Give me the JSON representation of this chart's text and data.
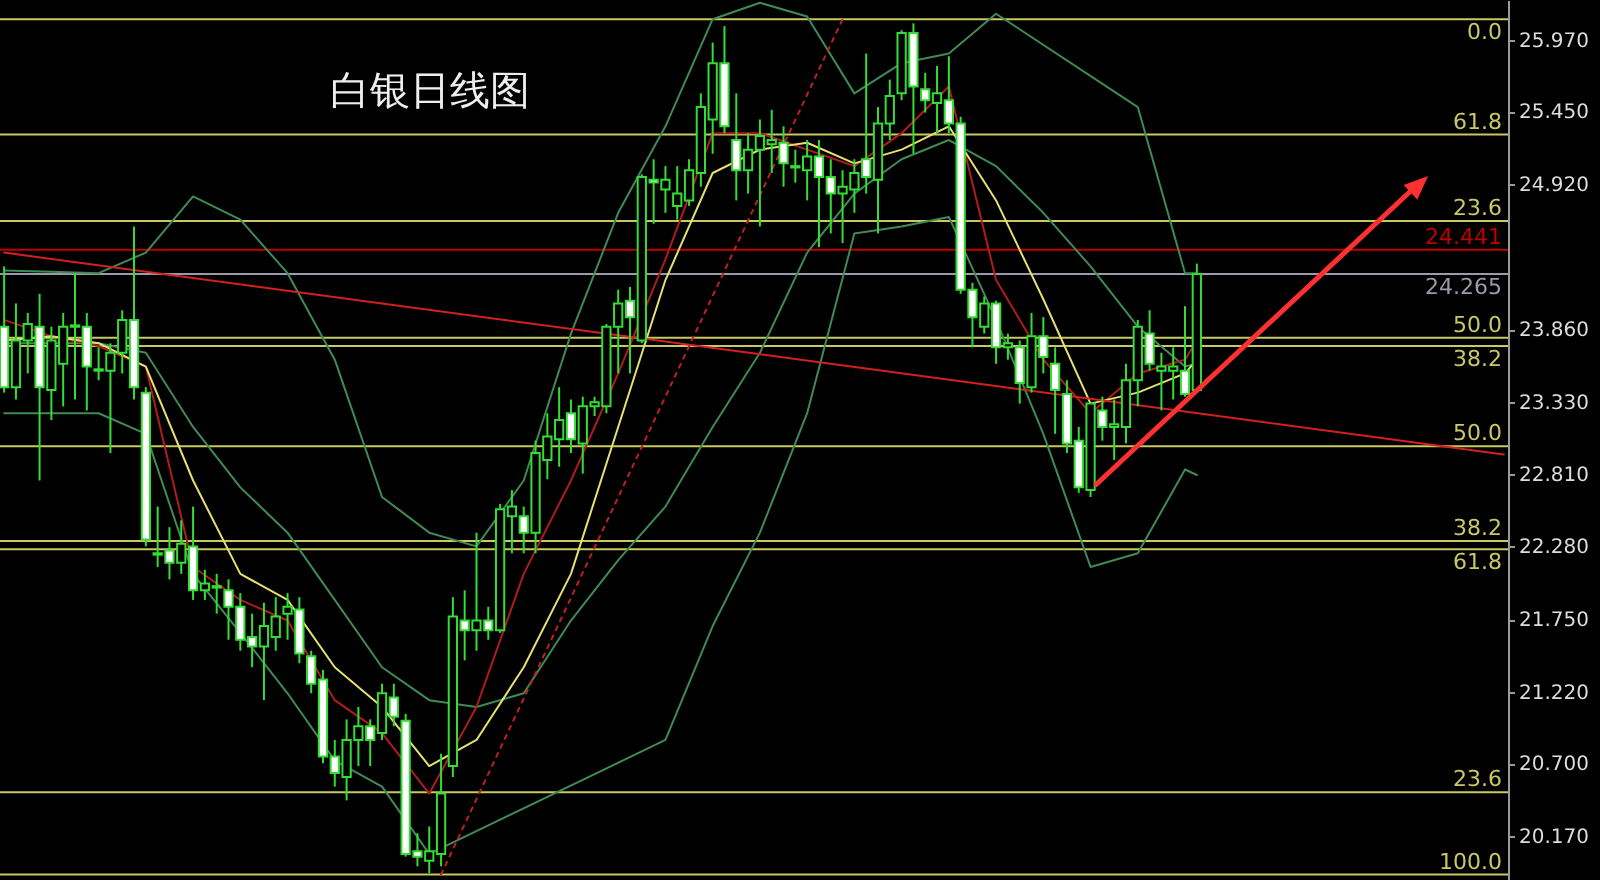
{
  "chart_data": {
    "type": "candlestick",
    "title": "白银日线图",
    "categories": [
      null,
      null,
      null,
      null,
      null,
      null,
      null,
      null,
      null,
      null,
      null,
      null,
      null,
      null,
      null,
      null,
      null,
      null,
      null,
      null,
      null,
      null,
      null,
      null,
      null,
      null,
      null,
      null,
      null,
      null,
      null,
      null,
      null,
      null,
      null,
      null,
      null,
      null,
      null,
      null,
      null,
      null,
      null,
      null,
      null,
      null,
      null,
      null,
      null,
      null,
      null,
      null,
      null,
      null,
      null,
      null,
      null,
      null,
      null,
      null,
      null,
      null,
      null,
      null,
      null,
      null,
      null,
      null,
      null,
      null,
      null,
      null,
      null,
      null,
      null,
      null,
      null,
      null,
      null,
      null,
      null,
      null,
      null,
      null,
      null,
      null,
      null,
      null,
      null,
      null,
      null,
      null,
      null,
      null,
      null,
      null,
      null,
      null,
      null,
      null,
      null,
      null,
      null,
      null,
      null,
      null,
      null,
      null,
      null,
      null,
      null,
      null,
      null,
      null,
      null,
      null,
      null,
      null,
      null,
      null,
      null,
      null,
      null,
      null,
      null,
      null,
      null,
      null
    ],
    "color": "#33dd33",
    "ohlc": [
      [
        23.88,
        24.32,
        23.4,
        23.44
      ],
      [
        23.44,
        24.05,
        23.35,
        23.78
      ],
      [
        23.78,
        23.98,
        23.54,
        23.9
      ],
      [
        23.88,
        24.12,
        22.76,
        23.44
      ],
      [
        23.42,
        23.88,
        23.2,
        23.78
      ],
      [
        23.61,
        23.98,
        23.3,
        23.88
      ],
      [
        23.88,
        24.27,
        23.35,
        23.89
      ],
      [
        23.88,
        23.98,
        23.27,
        23.59
      ],
      [
        23.56,
        23.73,
        23.49,
        23.57
      ],
      [
        23.56,
        23.76,
        22.96,
        23.69
      ],
      [
        23.69,
        24.0,
        23.54,
        23.93
      ],
      [
        23.93,
        24.61,
        23.35,
        23.44
      ],
      [
        23.4,
        23.44,
        22.28,
        22.33
      ],
      [
        22.22,
        22.57,
        22.13,
        22.23
      ],
      [
        22.25,
        22.42,
        22.04,
        22.16
      ],
      [
        22.16,
        22.47,
        22.08,
        22.3
      ],
      [
        22.28,
        22.57,
        21.89,
        21.96
      ],
      [
        21.96,
        22.11,
        21.89,
        22.01
      ],
      [
        21.98,
        22.08,
        21.79,
        21.99
      ],
      [
        21.96,
        22.04,
        21.6,
        21.84
      ],
      [
        21.84,
        21.94,
        21.52,
        21.6
      ],
      [
        21.62,
        21.79,
        21.4,
        21.55
      ],
      [
        21.55,
        21.87,
        21.16,
        21.7
      ],
      [
        21.62,
        21.91,
        21.52,
        21.77
      ],
      [
        21.79,
        21.94,
        21.6,
        21.84
      ],
      [
        21.82,
        21.91,
        21.43,
        21.5
      ],
      [
        21.48,
        21.52,
        21.21,
        21.28
      ],
      [
        21.31,
        21.38,
        20.7,
        20.75
      ],
      [
        20.75,
        20.87,
        20.53,
        20.63
      ],
      [
        20.6,
        21.02,
        20.43,
        20.87
      ],
      [
        20.87,
        21.11,
        20.68,
        20.97
      ],
      [
        20.97,
        21.02,
        20.68,
        20.87
      ],
      [
        20.92,
        21.28,
        20.87,
        21.21
      ],
      [
        21.18,
        21.28,
        20.97,
        21.04
      ],
      [
        21.01,
        21.06,
        20.02,
        20.04
      ],
      [
        20.06,
        20.19,
        19.95,
        20.02
      ],
      [
        19.99,
        20.24,
        19.9,
        20.06
      ],
      [
        20.04,
        20.77,
        19.95,
        20.48
      ],
      [
        20.68,
        21.91,
        20.6,
        21.77
      ],
      [
        21.74,
        21.96,
        21.45,
        21.67
      ],
      [
        21.67,
        22.38,
        21.52,
        21.74
      ],
      [
        21.74,
        21.84,
        21.6,
        21.67
      ],
      [
        21.67,
        22.59,
        21.65,
        22.55
      ],
      [
        22.5,
        22.69,
        22.23,
        22.57
      ],
      [
        22.5,
        22.57,
        22.23,
        22.38
      ],
      [
        22.38,
        23.05,
        22.23,
        22.96
      ],
      [
        22.91,
        23.25,
        22.77,
        23.08
      ],
      [
        23.06,
        23.44,
        22.86,
        23.2
      ],
      [
        23.25,
        23.35,
        22.96,
        23.06
      ],
      [
        23.03,
        23.37,
        22.81,
        23.3
      ],
      [
        23.3,
        23.37,
        23.23,
        23.33
      ],
      [
        23.3,
        23.9,
        23.25,
        23.88
      ],
      [
        23.88,
        24.15,
        23.54,
        24.05
      ],
      [
        24.07,
        24.17,
        23.54,
        23.95
      ],
      [
        23.78,
        24.99,
        23.76,
        24.97
      ],
      [
        24.95,
        25.1,
        24.63,
        24.93
      ],
      [
        24.88,
        25.05,
        24.71,
        24.95
      ],
      [
        24.76,
        25.05,
        24.66,
        24.85
      ],
      [
        24.8,
        25.1,
        24.76,
        25.02
      ],
      [
        25.0,
        25.58,
        24.9,
        25.48
      ],
      [
        25.39,
        25.95,
        25.14,
        25.8
      ],
      [
        25.8,
        26.07,
        25.29,
        25.34
      ],
      [
        25.24,
        25.58,
        24.8,
        25.02
      ],
      [
        25.02,
        25.29,
        24.85,
        25.17
      ],
      [
        25.17,
        25.39,
        24.61,
        25.27
      ],
      [
        25.21,
        25.46,
        25.0,
        25.24
      ],
      [
        25.22,
        25.34,
        24.9,
        25.07
      ],
      [
        25.04,
        25.17,
        24.93,
        25.05
      ],
      [
        25.02,
        25.24,
        24.8,
        25.12
      ],
      [
        25.12,
        25.24,
        24.46,
        24.97
      ],
      [
        24.97,
        25.1,
        24.56,
        24.85
      ],
      [
        24.85,
        25.02,
        24.49,
        24.9
      ],
      [
        24.88,
        25.1,
        24.71,
        25.0
      ],
      [
        25.1,
        25.87,
        24.85,
        24.97
      ],
      [
        24.95,
        25.48,
        24.56,
        25.36
      ],
      [
        25.36,
        25.68,
        25.24,
        25.56
      ],
      [
        25.58,
        26.04,
        25.53,
        26.02
      ],
      [
        26.02,
        26.09,
        25.14,
        25.63
      ],
      [
        25.61,
        25.73,
        25.44,
        25.53
      ],
      [
        25.51,
        25.78,
        25.29,
        25.58
      ],
      [
        25.53,
        25.85,
        25.29,
        25.36
      ],
      [
        25.36,
        25.41,
        24.12,
        24.15
      ],
      [
        24.15,
        24.2,
        23.73,
        23.95
      ],
      [
        23.88,
        24.1,
        23.83,
        24.05
      ],
      [
        24.05,
        24.07,
        23.61,
        23.73
      ],
      [
        23.73,
        23.83,
        23.64,
        23.76
      ],
      [
        23.73,
        23.78,
        23.32,
        23.47
      ],
      [
        23.44,
        23.98,
        23.4,
        23.81
      ],
      [
        23.81,
        23.95,
        23.54,
        23.66
      ],
      [
        23.61,
        23.73,
        23.1,
        23.42
      ],
      [
        23.39,
        23.49,
        22.96,
        23.03
      ],
      [
        23.05,
        23.15,
        22.67,
        22.71
      ],
      [
        22.69,
        23.32,
        22.64,
        23.32
      ],
      [
        23.27,
        23.37,
        23.05,
        23.15
      ],
      [
        23.15,
        23.35,
        22.91,
        23.17
      ],
      [
        23.15,
        23.61,
        23.03,
        23.49
      ],
      [
        23.49,
        23.93,
        23.3,
        23.88
      ],
      [
        23.83,
        24.0,
        23.56,
        23.61
      ],
      [
        23.56,
        23.69,
        23.27,
        23.59
      ],
      [
        23.56,
        23.73,
        23.35,
        23.59
      ],
      [
        23.56,
        24.03,
        23.37,
        23.39
      ],
      [
        23.42,
        24.34,
        23.4,
        24.265
      ],
      null,
      null,
      null,
      null,
      null,
      null,
      null,
      null,
      null,
      null,
      null,
      null,
      null,
      null,
      null,
      null,
      null,
      null,
      null,
      null,
      null,
      null,
      null,
      null,
      null,
      null
    ],
    "series": [
      {
        "type": "line",
        "color": "#3f8a55",
        "values": [
          24.29,
          null,
          null,
          null,
          24.28,
          null,
          null,
          null,
          24.27,
          null,
          null,
          null,
          24.42,
          null,
          null,
          null,
          24.83,
          null,
          null,
          null,
          24.66,
          null,
          null,
          null,
          24.27,
          null,
          null,
          null,
          23.64,
          null,
          null,
          null,
          22.64,
          null,
          null,
          null,
          22.38,
          null,
          null,
          null,
          22.28,
          null,
          null,
          null,
          22.76,
          null,
          null,
          null,
          23.83,
          null,
          null,
          null,
          24.71,
          null,
          null,
          null,
          25.34,
          null,
          null,
          null,
          26.12,
          null,
          null,
          null,
          26.24,
          null,
          null,
          null,
          26.14,
          null,
          null,
          null,
          25.58,
          null,
          null,
          null,
          25.8,
          null,
          null,
          null,
          25.87,
          null,
          null,
          null,
          26.16,
          null,
          null,
          null,
          null,
          null,
          null,
          null,
          null,
          null,
          null,
          null,
          25.48,
          null,
          null,
          null,
          24.27,
          24.27,
          null,
          null,
          null,
          null,
          null,
          null,
          null,
          null,
          null,
          null,
          null,
          null,
          null,
          null,
          null,
          null,
          null,
          null,
          null,
          null,
          null,
          null,
          null,
          null,
          null,
          null
        ]
      },
      {
        "type": "line",
        "color": "#3f8a55",
        "values": [
          23.76,
          null,
          null,
          null,
          23.76,
          null,
          null,
          null,
          23.76,
          null,
          null,
          null,
          23.69,
          null,
          null,
          null,
          23.15,
          null,
          null,
          null,
          22.71,
          null,
          null,
          null,
          22.38,
          null,
          null,
          null,
          21.89,
          null,
          null,
          null,
          21.4,
          null,
          null,
          null,
          21.16,
          null,
          null,
          null,
          21.11,
          null,
          null,
          null,
          21.21,
          null,
          null,
          null,
          21.74,
          null,
          null,
          null,
          22.18,
          null,
          null,
          null,
          22.57,
          null,
          null,
          null,
          23.15,
          null,
          null,
          null,
          23.69,
          null,
          null,
          null,
          24.42,
          null,
          null,
          null,
          24.85,
          null,
          null,
          null,
          25.1,
          null,
          null,
          null,
          25.24,
          null,
          null,
          null,
          25.05,
          null,
          null,
          null,
          24.71,
          null,
          null,
          null,
          24.32,
          null,
          null,
          null,
          23.88,
          null,
          null,
          null,
          23.59,
          23.61,
          null,
          null,
          null,
          null,
          null,
          null,
          null,
          null,
          null,
          null,
          null,
          null,
          null,
          null,
          null,
          null,
          null,
          null,
          null,
          null,
          null,
          null,
          null,
          null,
          null,
          null
        ]
      },
      {
        "type": "line",
        "color": "#3f8a55",
        "values": [
          23.25,
          null,
          null,
          null,
          23.25,
          null,
          null,
          null,
          23.25,
          null,
          null,
          null,
          23.1,
          null,
          null,
          null,
          22.08,
          null,
          null,
          null,
          21.65,
          null,
          null,
          null,
          21.21,
          null,
          null,
          null,
          20.72,
          null,
          null,
          null,
          20.53,
          null,
          null,
          null,
          20.04,
          null,
          null,
          null,
          null,
          null,
          null,
          null,
          null,
          null,
          null,
          null,
          null,
          null,
          null,
          null,
          null,
          null,
          null,
          null,
          20.87,
          null,
          null,
          null,
          21.7,
          null,
          null,
          null,
          22.38,
          null,
          null,
          null,
          23.25,
          null,
          null,
          null,
          24.56,
          null,
          null,
          null,
          24.61,
          null,
          null,
          null,
          24.68,
          null,
          null,
          null,
          23.93,
          null,
          null,
          null,
          23.1,
          null,
          null,
          null,
          22.13,
          null,
          null,
          null,
          22.23,
          null,
          null,
          null,
          22.84,
          22.8,
          null,
          null,
          null,
          null,
          null,
          null,
          null,
          null,
          null,
          null,
          null,
          null,
          null,
          null,
          null,
          null,
          null,
          null,
          null,
          null,
          null,
          null,
          null,
          null,
          null,
          null
        ]
      },
      {
        "type": "line",
        "color": "#b01c1c",
        "values": [
          23.93,
          null,
          null,
          null,
          23.81,
          null,
          null,
          null,
          23.74,
          null,
          null,
          null,
          23.59,
          null,
          null,
          null,
          22.13,
          null,
          null,
          null,
          21.89,
          null,
          null,
          null,
          21.74,
          null,
          null,
          null,
          21.16,
          null,
          null,
          null,
          20.92,
          null,
          null,
          null,
          20.48,
          null,
          null,
          null,
          21.11,
          null,
          null,
          null,
          22.08,
          null,
          null,
          null,
          22.76,
          null,
          null,
          null,
          23.54,
          null,
          null,
          null,
          24.37,
          null,
          null,
          null,
          25.29,
          null,
          null,
          null,
          25.29,
          null,
          null,
          null,
          25.17,
          null,
          null,
          null,
          25.05,
          null,
          null,
          null,
          25.29,
          null,
          null,
          null,
          25.63,
          null,
          null,
          null,
          24.22,
          null,
          null,
          null,
          23.64,
          null,
          null,
          null,
          23.25,
          null,
          null,
          null,
          23.54,
          null,
          null,
          null,
          23.64,
          23.78,
          null,
          null,
          null,
          null,
          null,
          null,
          null,
          null,
          null,
          null,
          null,
          null,
          null,
          null,
          null,
          null,
          null,
          null,
          null,
          null,
          null,
          null,
          null,
          null,
          null,
          null
        ]
      },
      {
        "type": "line",
        "color": "#e6e070",
        "values": [
          23.78,
          null,
          null,
          null,
          23.81,
          null,
          null,
          null,
          23.76,
          null,
          null,
          null,
          23.59,
          null,
          null,
          null,
          22.76,
          null,
          null,
          null,
          22.08,
          null,
          null,
          null,
          21.89,
          null,
          null,
          null,
          21.4,
          null,
          null,
          null,
          21.11,
          null,
          null,
          null,
          20.68,
          null,
          null,
          null,
          20.87,
          null,
          null,
          null,
          21.4,
          null,
          null,
          null,
          22.08,
          null,
          null,
          null,
          23.15,
          null,
          null,
          null,
          24.22,
          null,
          null,
          null,
          25.0,
          null,
          null,
          null,
          25.17,
          null,
          null,
          null,
          25.22,
          null,
          null,
          null,
          25.07,
          null,
          null,
          null,
          25.17,
          null,
          null,
          null,
          25.34,
          null,
          null,
          null,
          24.8,
          null,
          null,
          null,
          24.08,
          null,
          null,
          null,
          23.32,
          null,
          null,
          null,
          23.4,
          null,
          null,
          null,
          23.54,
          23.64,
          null,
          null,
          null,
          null,
          null,
          null,
          null,
          null,
          null,
          null,
          null,
          null,
          null,
          null,
          null,
          null,
          null,
          null,
          null,
          null,
          null,
          null,
          null,
          null,
          null,
          null
        ]
      },
      {
        "type": "line",
        "color": "#d42020",
        "values": [
          24.42,
          null,
          null,
          null,
          null,
          null,
          null,
          null,
          null,
          null,
          null,
          null,
          null,
          null,
          null,
          null,
          null,
          null,
          null,
          null,
          null,
          null,
          null,
          null,
          null,
          null,
          null,
          null,
          null,
          null,
          null,
          null,
          null,
          null,
          null,
          null,
          null,
          null,
          null,
          null,
          null,
          null,
          null,
          null,
          null,
          null,
          null,
          null,
          null,
          null,
          null,
          null,
          null,
          null,
          null,
          null,
          null,
          null,
          null,
          null,
          null,
          null,
          null,
          null,
          null,
          null,
          null,
          null,
          null,
          null,
          null,
          null,
          null,
          null,
          null,
          null,
          null,
          null,
          null,
          null,
          null,
          null,
          null,
          null,
          null,
          null,
          null,
          null,
          null,
          null,
          null,
          null,
          null,
          null,
          null,
          null,
          null,
          null,
          null,
          null,
          null,
          null,
          null,
          null,
          null,
          null,
          null,
          null,
          null,
          null,
          null,
          null,
          null,
          null,
          null,
          null,
          null,
          null,
          null,
          null,
          null,
          null,
          null,
          null,
          null,
          null,
          null,
          22.95
        ]
      },
      {
        "type": "line",
        "color": "#c02020",
        "line_style": "dotted",
        "values": [
          null,
          null,
          null,
          null,
          null,
          null,
          null,
          null,
          null,
          null,
          null,
          null,
          null,
          null,
          null,
          null,
          null,
          null,
          null,
          null,
          null,
          null,
          null,
          null,
          null,
          null,
          null,
          null,
          null,
          null,
          null,
          null,
          null,
          null,
          null,
          null,
          null,
          19.89,
          null,
          null,
          null,
          null,
          null,
          null,
          null,
          null,
          null,
          null,
          null,
          null,
          null,
          null,
          null,
          null,
          null,
          null,
          null,
          null,
          null,
          null,
          null,
          null,
          null,
          null,
          null,
          null,
          null,
          null,
          null,
          null,
          null,
          26.12,
          null,
          null,
          null,
          null,
          null,
          null,
          null,
          null,
          null,
          null,
          null,
          null,
          null,
          null,
          null,
          null,
          null,
          null,
          null,
          null,
          null,
          null,
          null,
          null,
          null,
          null,
          null,
          null,
          null,
          null,
          null,
          null,
          null,
          null,
          null,
          null,
          null,
          null,
          null,
          null,
          null,
          null,
          null,
          null,
          null,
          null,
          null,
          null,
          null,
          null,
          null,
          null,
          null,
          null,
          null,
          null
        ]
      }
    ],
    "ylim": [
      19.85,
      26.26
    ],
    "yticks": [
      {
        "value": 25.97,
        "label": "25.970"
      },
      {
        "value": 25.45,
        "label": "25.450"
      },
      {
        "value": 24.92,
        "label": "24.920"
      },
      {
        "value": 23.86,
        "label": "23.860"
      },
      {
        "value": 23.33,
        "label": "23.330"
      },
      {
        "value": 22.81,
        "label": "22.810"
      },
      {
        "value": 22.28,
        "label": "22.280"
      },
      {
        "value": 21.75,
        "label": "21.750"
      },
      {
        "value": 21.22,
        "label": "21.220"
      },
      {
        "value": 20.7,
        "label": "20.700"
      },
      {
        "value": 20.17,
        "label": "20.170"
      }
    ],
    "ref_lines": [
      {
        "axis": "y",
        "value": 26.12,
        "color": "#c8c864"
      },
      {
        "axis": "y",
        "value": 25.28,
        "color": "#c8c864"
      },
      {
        "axis": "y",
        "value": 24.65,
        "color": "#c8c864"
      },
      {
        "axis": "y",
        "value": 24.441,
        "label": "24.441",
        "color": "#c00000"
      },
      {
        "axis": "y",
        "value": 24.265,
        "label": "24.265",
        "color": "#9a9aaa"
      },
      {
        "axis": "y",
        "value": 23.8,
        "color": "#c8c864"
      },
      {
        "axis": "y",
        "value": 23.74,
        "color": "#c8c864"
      },
      {
        "axis": "y",
        "value": 23.01,
        "color": "#c8c864"
      },
      {
        "axis": "y",
        "value": 22.32,
        "color": "#c8c864"
      },
      {
        "axis": "y",
        "value": 22.26,
        "color": "#c8c864"
      },
      {
        "axis": "y",
        "value": 20.49,
        "color": "#c8c864"
      },
      {
        "axis": "y",
        "value": 19.89,
        "color": "#c8c864"
      }
    ],
    "annotations": [
      {
        "text": "0.0",
        "y": 26.12
      },
      {
        "text": "61.8",
        "y": 25.28
      },
      {
        "text": "23.6",
        "y": 24.65
      },
      {
        "text": "50.0",
        "y": 23.8
      },
      {
        "text": "38.2",
        "y": 23.74
      },
      {
        "text": "50.0",
        "y": 23.01
      },
      {
        "text": "38.2",
        "y": 22.32
      },
      {
        "text": "61.8",
        "y": 22.26
      },
      {
        "text": "23.6",
        "y": 20.49
      },
      {
        "text": "100.0",
        "y": 19.89
      }
    ],
    "grid": false
  }
}
